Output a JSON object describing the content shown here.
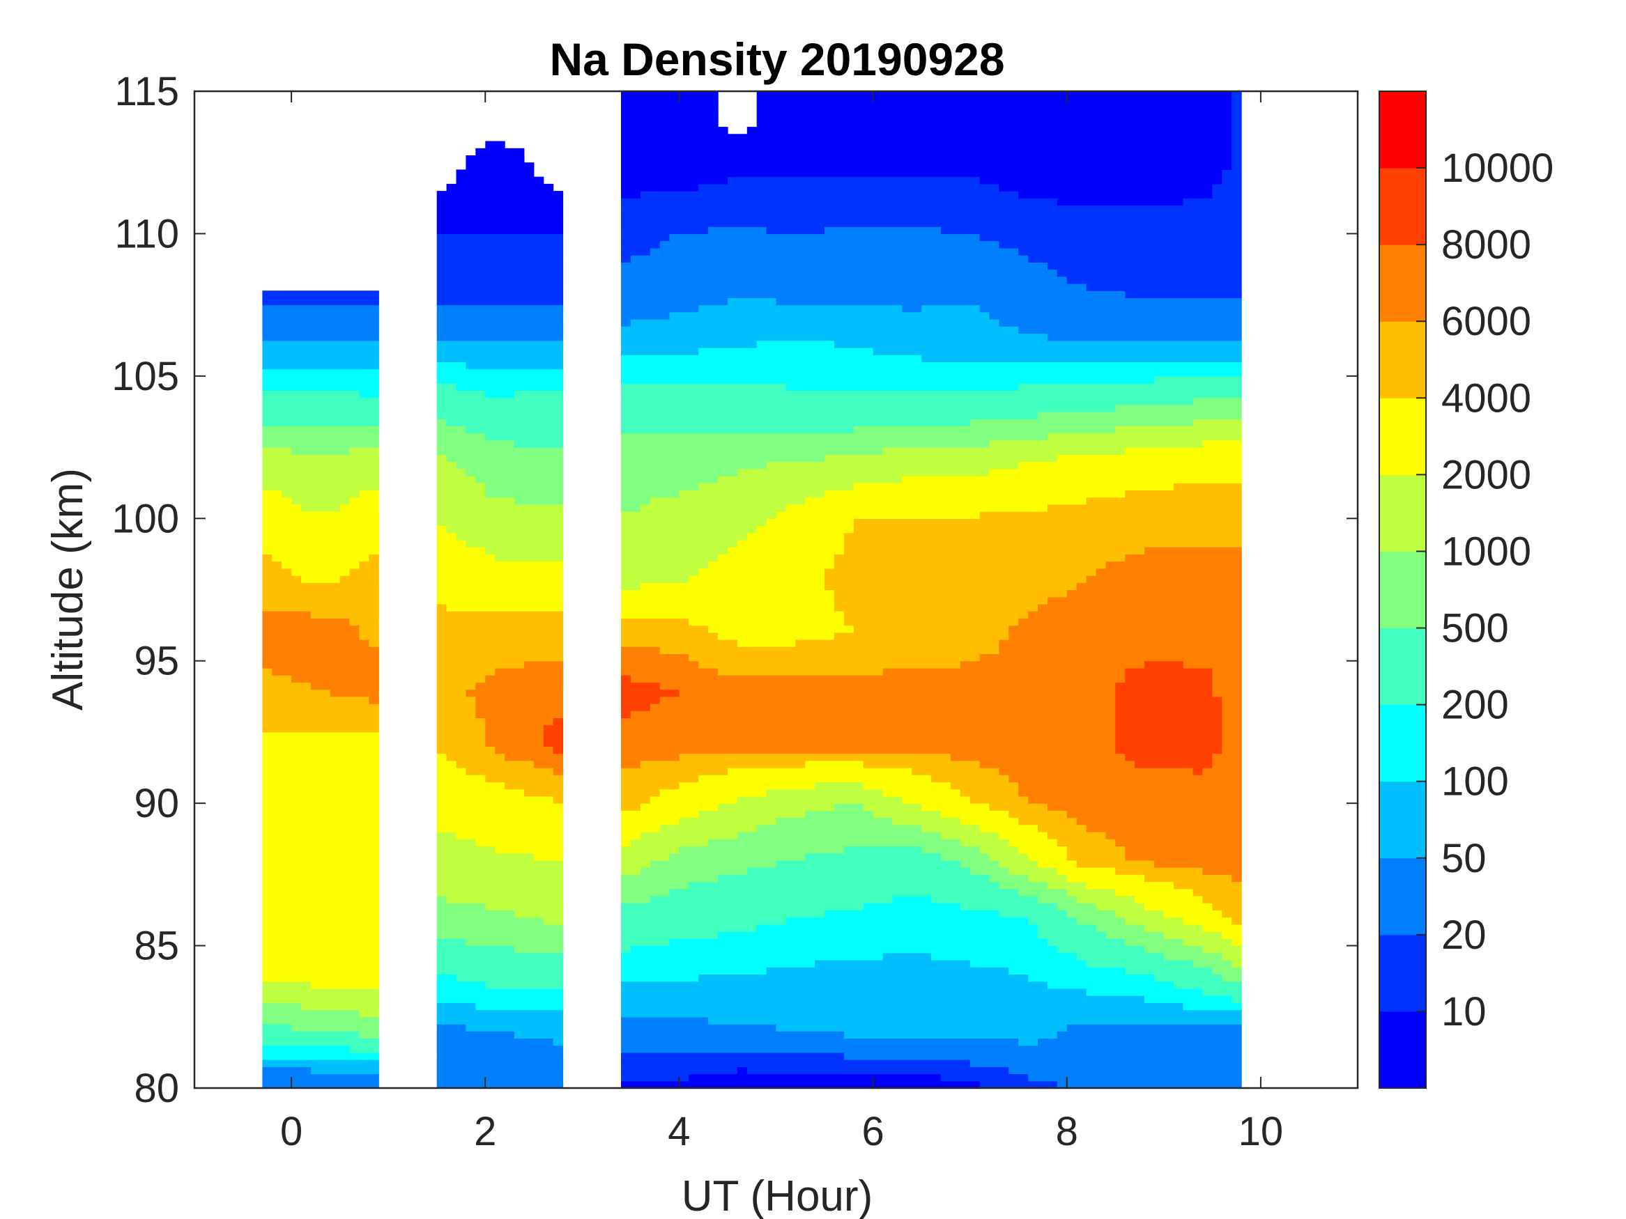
{
  "chart_data": {
    "type": "heatmap",
    "subtype": "filled-contour",
    "title": "Na Density 20190928",
    "xlabel": "UT (Hour)",
    "ylabel": "Altitude (km)",
    "xlim": [
      -1,
      11
    ],
    "ylim": [
      80,
      115
    ],
    "xticks": [
      0,
      2,
      4,
      6,
      8,
      10
    ],
    "yticks": [
      80,
      85,
      90,
      95,
      100,
      105,
      110,
      115
    ],
    "grid": false,
    "colorbar": {
      "placement": "right",
      "levels": [
        0,
        10,
        20,
        50,
        100,
        200,
        500,
        1000,
        2000,
        4000,
        6000,
        8000,
        10000,
        12000
      ],
      "tick_labels": [
        "10",
        "20",
        "50",
        "100",
        "200",
        "500",
        "1000",
        "2000",
        "4000",
        "6000",
        "8000",
        "10000"
      ],
      "colors": [
        "#0000FF",
        "#0033FF",
        "#0080FF",
        "#00BFFF",
        "#00FFFF",
        "#40FFBF",
        "#80FF80",
        "#BFFF40",
        "#FFFF00",
        "#FFBF00",
        "#FF8000",
        "#FF4000",
        "#FF0000"
      ]
    },
    "data_segments": [
      {
        "x_start": -0.3,
        "x_end": 0.9,
        "alt_top": 108
      },
      {
        "x_start": 1.5,
        "x_end": 2.8,
        "alt_top": 115
      },
      {
        "x_start": 3.4,
        "x_end": 9.8,
        "alt_top": 115
      }
    ],
    "times": [
      -0.3,
      0.3,
      0.9,
      1.5,
      2.1,
      2.8,
      3.4,
      4.0,
      4.6,
      5.2,
      5.8,
      6.4,
      7.0,
      7.6,
      8.2,
      8.8,
      9.4,
      9.8
    ],
    "altitudes": [
      80,
      82,
      84,
      86,
      88,
      90,
      92,
      94,
      96,
      98,
      100,
      102,
      104,
      106,
      108,
      110,
      112,
      114
    ],
    "density": [
      [
        18,
        18,
        18,
        25,
        25,
        25,
        8,
        8,
        5,
        5,
        5,
        5,
        8,
        15,
        25,
        25,
        30,
        30
      ],
      [
        400,
        500,
        700,
        40,
        50,
        60,
        40,
        40,
        45,
        50,
        60,
        70,
        60,
        70,
        40,
        40,
        40,
        40
      ],
      [
        2500,
        2800,
        3000,
        200,
        300,
        300,
        120,
        110,
        100,
        90,
        80,
        80,
        90,
        100,
        150,
        200,
        400,
        800
      ],
      [
        3000,
        3200,
        3000,
        800,
        900,
        1200,
        400,
        300,
        250,
        200,
        180,
        150,
        160,
        200,
        600,
        1500,
        3000,
        5000
      ],
      [
        3200,
        3200,
        3000,
        1500,
        1800,
        2000,
        1500,
        800,
        600,
        500,
        400,
        300,
        600,
        2000,
        5000,
        6500,
        7000,
        7000
      ],
      [
        3000,
        3200,
        3000,
        2500,
        3000,
        4000,
        5000,
        3000,
        1800,
        1200,
        1000,
        2000,
        4000,
        6000,
        7000,
        6500,
        6500,
        6500
      ],
      [
        3500,
        3500,
        3500,
        4000,
        6500,
        9000,
        7000,
        7000,
        7000,
        7000,
        7000,
        7000,
        7000,
        7000,
        7000,
        9000,
        9500,
        6500
      ],
      [
        5500,
        6000,
        7000,
        5500,
        6500,
        7500,
        9000,
        8000,
        7000,
        6800,
        7000,
        7000,
        7000,
        7000,
        7000,
        9000,
        9000,
        6500
      ],
      [
        7000,
        7500,
        5500,
        4500,
        5000,
        5000,
        5500,
        5000,
        3500,
        3500,
        4000,
        4500,
        5000,
        6500,
        7500,
        7000,
        6800,
        6500
      ],
      [
        5000,
        3500,
        5000,
        3500,
        2500,
        2500,
        1500,
        1800,
        2800,
        3500,
        4500,
        4500,
        4500,
        5000,
        6000,
        6500,
        7000,
        7000
      ],
      [
        3000,
        2000,
        3000,
        2000,
        1200,
        1200,
        1000,
        1200,
        1500,
        2500,
        4000,
        4200,
        4200,
        4500,
        5000,
        5500,
        5000,
        5000
      ],
      [
        1500,
        1200,
        1500,
        1200,
        700,
        600,
        800,
        800,
        900,
        1000,
        1200,
        1500,
        1500,
        2000,
        2500,
        3000,
        3500,
        3500
      ],
      [
        300,
        300,
        250,
        400,
        250,
        300,
        350,
        300,
        300,
        250,
        250,
        300,
        300,
        350,
        400,
        500,
        600,
        600
      ],
      [
        60,
        60,
        60,
        60,
        60,
        60,
        80,
        90,
        100,
        120,
        100,
        80,
        70,
        60,
        55,
        60,
        55,
        55
      ],
      [
        15,
        15,
        15,
        15,
        15,
        15,
        25,
        35,
        45,
        40,
        40,
        40,
        45,
        30,
        20,
        18,
        18,
        18
      ],
      [
        null,
        null,
        null,
        10,
        10,
        10,
        15,
        20,
        22,
        20,
        22,
        22,
        20,
        15,
        12,
        12,
        14,
        14
      ],
      [
        null,
        null,
        null,
        null,
        8,
        null,
        8,
        8,
        10,
        10,
        10,
        10,
        10,
        8,
        8,
        8,
        8,
        12
      ],
      [
        null,
        null,
        null,
        null,
        null,
        null,
        6,
        4,
        null,
        5,
        6,
        4,
        6,
        6,
        5,
        4,
        4,
        12
      ]
    ],
    "density_units": "cm^-3",
    "density_note": "density[i][j] = value at altitudes[i], times[j]; null = no data (white)"
  }
}
